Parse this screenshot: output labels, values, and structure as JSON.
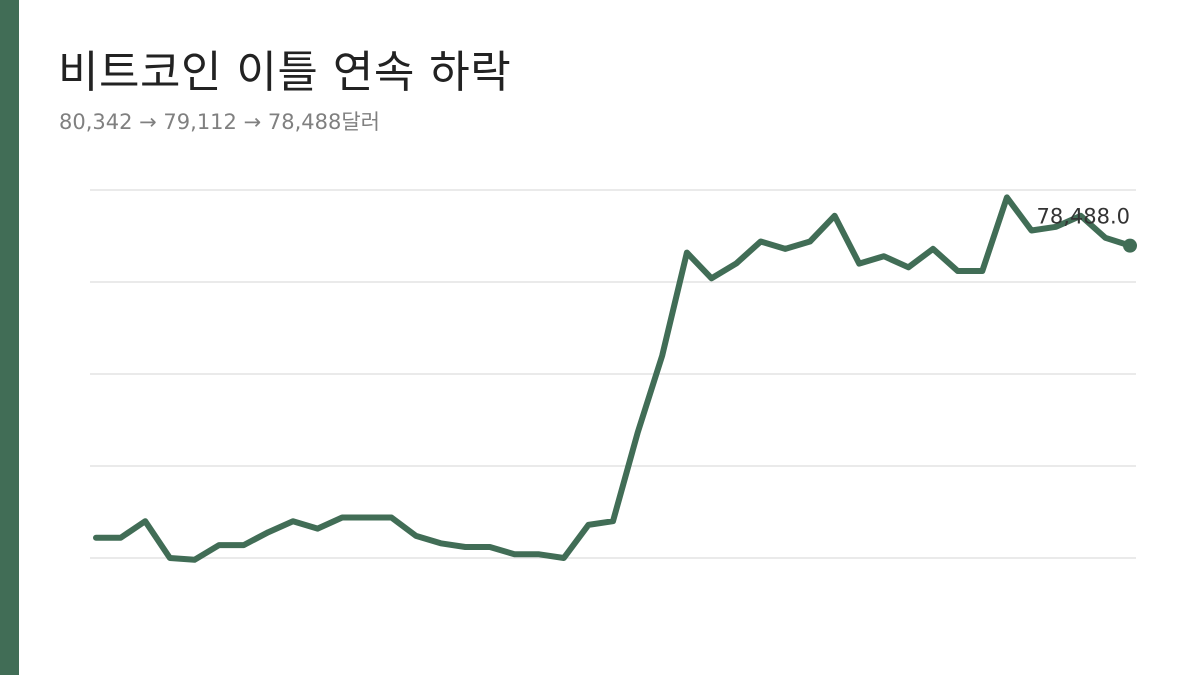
{
  "header": {
    "title": "비트코인 이틀 연속 하락",
    "subtitle": "80,342 → 79,112 → 78,488달러"
  },
  "colors": {
    "accent": "#416d56",
    "line": "#416d56",
    "grid": "#dddddd",
    "title": "#222222",
    "subtitle": "#808080"
  },
  "chart_data": {
    "type": "line",
    "title": "비트코인 이틀 연속 하락",
    "subtitle": "80,342 → 79,112 → 78,488달러",
    "xlabel": "",
    "ylabel": "",
    "grid": true,
    "legend": "none",
    "ylim": [
      70000,
      80000
    ],
    "gridlines": [
      70000,
      72500,
      75000,
      77500,
      80000
    ],
    "end_label": "78,488.0",
    "series": [
      {
        "values": [
          70550,
          70550,
          71000,
          70000,
          69950,
          70350,
          70350,
          70700,
          71000,
          70800,
          71100,
          71100,
          71100,
          70600,
          70400,
          70300,
          70300,
          70100,
          70100,
          70000,
          70900,
          71000,
          73400,
          75500,
          78300,
          77600,
          78000,
          78600,
          78400,
          78600,
          79300,
          78000,
          78200,
          77900,
          78400,
          77800,
          77800,
          79800,
          78900,
          79000,
          79300,
          78700,
          78488
        ]
      }
    ]
  }
}
